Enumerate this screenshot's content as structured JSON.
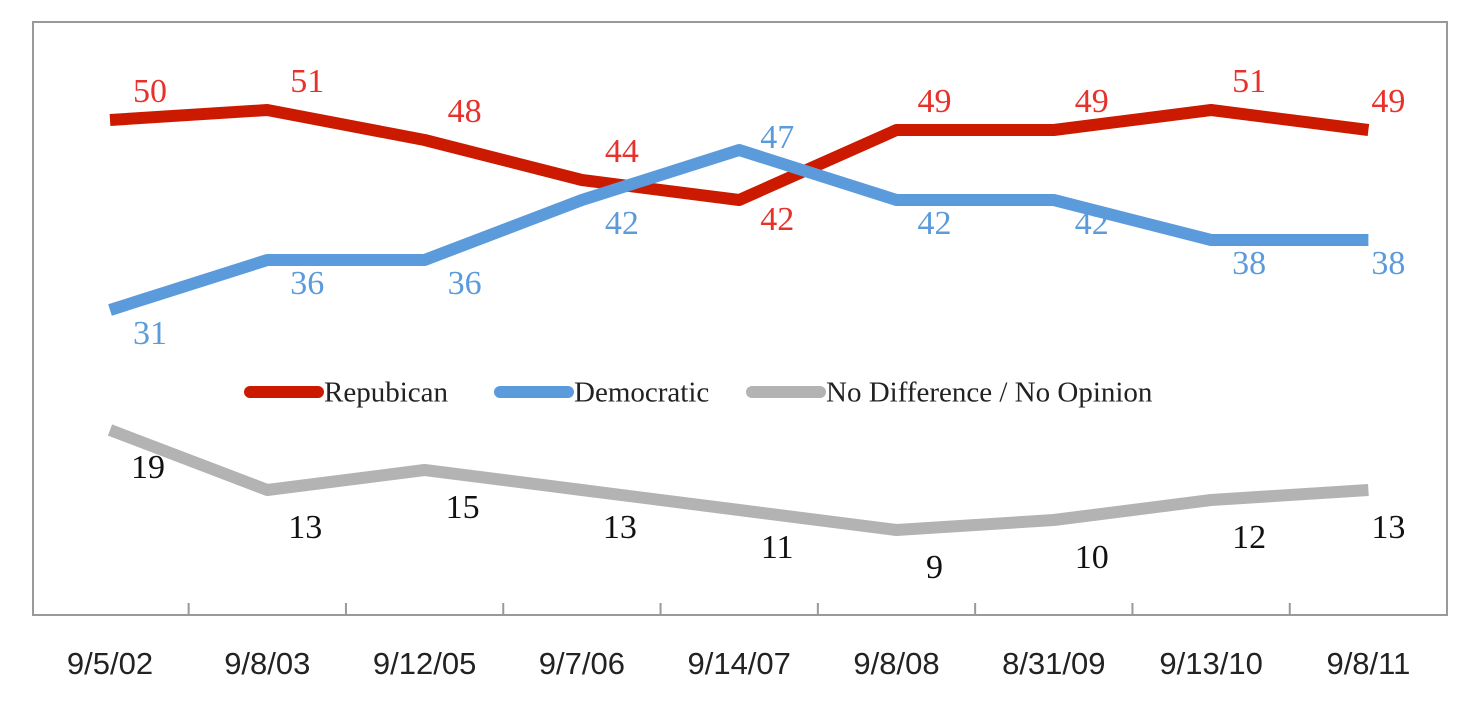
{
  "chart_data": {
    "type": "line",
    "categories": [
      "9/5/02",
      "9/8/03",
      "9/12/05",
      "9/7/06",
      "9/14/07",
      "9/8/08",
      "8/31/09",
      "9/13/10",
      "9/8/11"
    ],
    "series": [
      {
        "name": "Repubican",
        "color": "#cc1a00",
        "label_color": "#e8312a",
        "values": [
          50,
          51,
          48,
          44,
          42,
          49,
          49,
          51,
          49
        ]
      },
      {
        "name": "Democratic",
        "color": "#5b9bdb",
        "label_color": "#5b9bdb",
        "values": [
          31,
          36,
          36,
          42,
          47,
          42,
          42,
          38,
          38
        ]
      },
      {
        "name": "No Difference / No Opinion",
        "color": "#b3b3b3",
        "label_color": "#111111",
        "values": [
          19,
          13,
          15,
          13,
          11,
          9,
          10,
          12,
          13
        ]
      }
    ],
    "legend": "center"
  }
}
